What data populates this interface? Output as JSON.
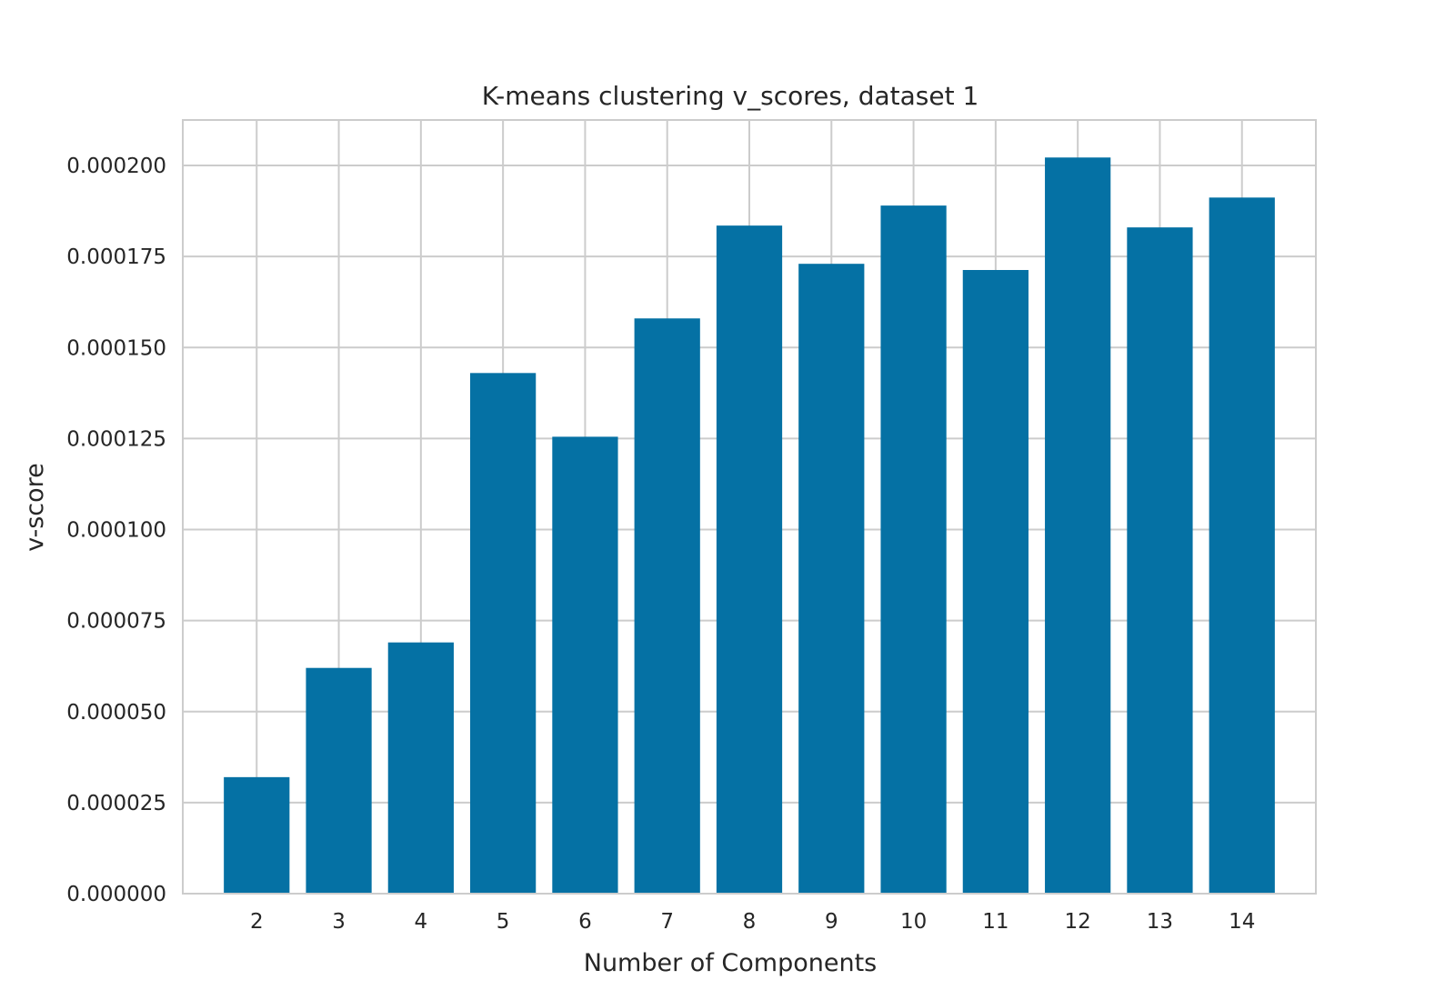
{
  "chart_data": {
    "type": "bar",
    "title": "K-means clustering v_scores, dataset 1",
    "xlabel": "Number of Components",
    "ylabel": "v-score",
    "categories": [
      "2",
      "3",
      "4",
      "5",
      "6",
      "7",
      "8",
      "9",
      "10",
      "11",
      "12",
      "13",
      "14"
    ],
    "values": [
      3.2e-05,
      6.2e-05,
      6.9e-05,
      0.000143,
      0.0001255,
      0.000158,
      0.0001835,
      0.000173,
      0.000189,
      0.0001713,
      0.0002022,
      0.000183,
      0.0001912
    ],
    "ylim": [
      0,
      0.0002125
    ],
    "yticks": [
      0,
      2.5e-05,
      5e-05,
      7.5e-05,
      0.0001,
      0.000125,
      0.00015,
      0.000175,
      0.0002
    ],
    "ytick_labels": [
      "0.000000",
      "0.000025",
      "0.000050",
      "0.000075",
      "0.000100",
      "0.000125",
      "0.000150",
      "0.000175",
      "0.000200"
    ],
    "grid": true,
    "bar_color": "#0571a4",
    "grid_color": "#cccccc",
    "frame_color": "#cccccc"
  }
}
